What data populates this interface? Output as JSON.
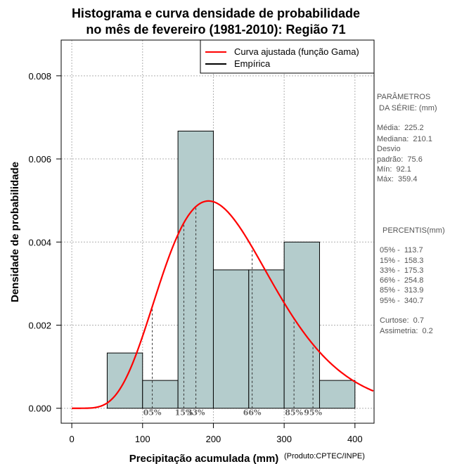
{
  "chart_data": {
    "type": "bar",
    "title": [
      "Histograma e curva densidade de probabilidade",
      "no mês de fevereiro (1981-2010): Região 71"
    ],
    "xlabel": "Precipitação acumulada (mm)",
    "ylabel": "Densidade de probabilidade",
    "credit": "(Produto:CPTEC/INPE)",
    "xlim": [
      -15,
      427
    ],
    "ylim": [
      -0.00036,
      0.00886
    ],
    "x_ticks": [
      0,
      100,
      200,
      300,
      400
    ],
    "y_ticks": [
      0.0,
      0.002,
      0.004,
      0.006,
      0.008
    ],
    "y_tick_labels": [
      "0.000",
      "0.002",
      "0.004",
      "0.006",
      "0.008"
    ],
    "grid": true,
    "histogram": {
      "bins": [
        [
          50,
          100
        ],
        [
          100,
          150
        ],
        [
          150,
          200
        ],
        [
          200,
          250
        ],
        [
          250,
          300
        ],
        [
          300,
          350
        ],
        [
          350,
          400
        ]
      ],
      "density": [
        0.00133,
        0.00067,
        0.00667,
        0.00333,
        0.00333,
        0.004,
        0.00067
      ],
      "color": "#b4cccc"
    },
    "series": [
      {
        "name": "Curva ajustada (função Gama)",
        "color": "#ff0000",
        "shape": 7.0,
        "scale": 32.2
      },
      {
        "name": "Empírica",
        "color": "#000000"
      }
    ],
    "legend_position": "top-right",
    "percentiles": [
      {
        "label": "05%",
        "value": 113.7
      },
      {
        "label": "15%",
        "value": 158.3
      },
      {
        "label": "33%",
        "value": 175.3
      },
      {
        "label": "66%",
        "value": 254.8
      },
      {
        "label": "85%",
        "value": 313.9
      },
      {
        "label": "95%",
        "value": 340.7
      }
    ],
    "parameters_panel": {
      "heading": [
        "PARÂMETROS",
        " DA SÉRIE: (mm)"
      ],
      "lines": [
        "Média:  225.2",
        "Mediana:  210.1",
        "Desvio",
        "padrão:  75.6",
        "Mín:  92.1",
        "Máx:  359.4"
      ]
    },
    "percentiles_panel": {
      "heading": "PERCENTIS(mm)",
      "lines": [
        "05% -  113.7",
        "15% -  158.3",
        "33% -  175.3",
        "66% -  254.8",
        "85% -  313.9",
        "95% -  340.7"
      ],
      "extra": [
        "Curtose:  0.7",
        "Assimetria:  0.2"
      ]
    }
  }
}
